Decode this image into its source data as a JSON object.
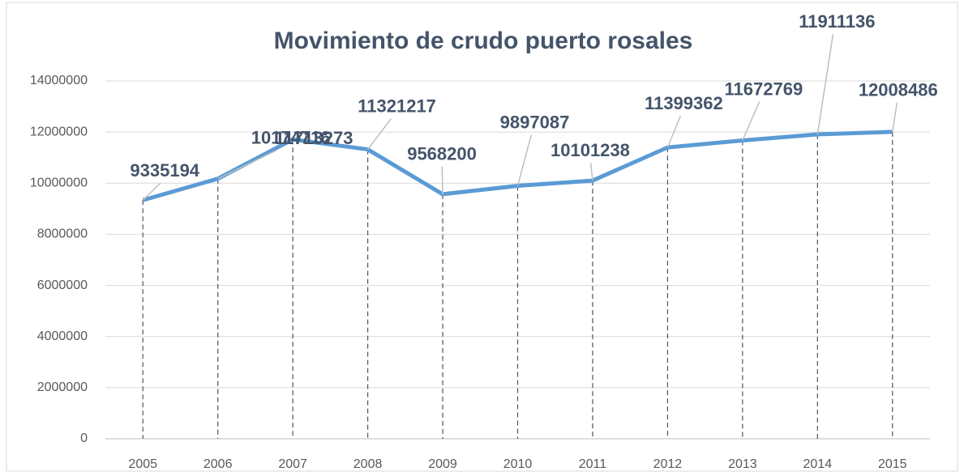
{
  "chart_data": {
    "type": "line",
    "title": "Movimiento de crudo puerto rosales",
    "categories": [
      "2005",
      "2006",
      "2007",
      "2008",
      "2009",
      "2010",
      "2011",
      "2012",
      "2013",
      "2014",
      "2015"
    ],
    "values": [
      9335194,
      10174716,
      11713273,
      11321217,
      9568200,
      9897087,
      10101238,
      11399362,
      11672769,
      11911136,
      12008486
    ],
    "color": "#5b9bd5",
    "ylim": [
      0,
      14000000
    ],
    "yticks": [
      0,
      2000000,
      4000000,
      6000000,
      8000000,
      10000000,
      12000000,
      14000000
    ],
    "grid": true
  }
}
